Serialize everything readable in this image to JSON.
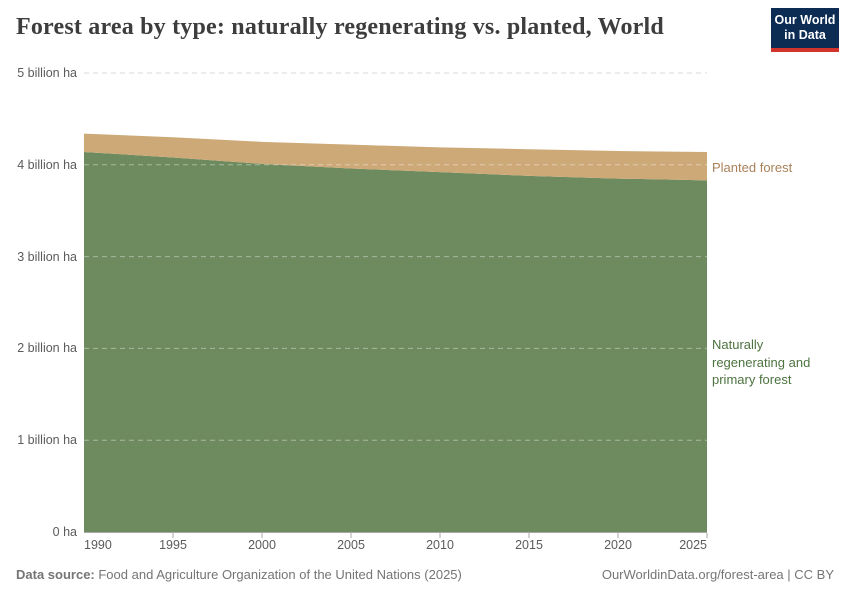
{
  "header": {
    "title": "Forest area by type: naturally regenerating vs. planted, World",
    "logo": {
      "line1": "Our World",
      "line2": "in Data"
    }
  },
  "chart_data": {
    "type": "area",
    "stacked": true,
    "title": "Forest area by type: naturally regenerating vs. planted, World",
    "x": [
      1990,
      1995,
      2000,
      2005,
      2010,
      2015,
      2020,
      2025
    ],
    "xticks": [
      "1990",
      "1995",
      "2000",
      "2005",
      "2010",
      "2015",
      "2020",
      "2025"
    ],
    "ylim": [
      0,
      5
    ],
    "y_unit": "billion ha",
    "yticks": [
      {
        "value": 0,
        "label": "0 ha"
      },
      {
        "value": 1,
        "label": "1 billion ha"
      },
      {
        "value": 2,
        "label": "2 billion ha"
      },
      {
        "value": 3,
        "label": "3 billion ha"
      },
      {
        "value": 4,
        "label": "4 billion ha"
      },
      {
        "value": 5,
        "label": "5 billion ha"
      }
    ],
    "grid": "horizontal-dashed",
    "legend_position": "right-edge-labels",
    "series": [
      {
        "name": "Naturally regenerating and primary forest",
        "label_lines": [
          "Naturally",
          "regenerating and",
          "primary forest"
        ],
        "color": "#6e8a5f",
        "label_color": "#4d7340",
        "values": [
          4.14,
          4.08,
          4.01,
          3.96,
          3.92,
          3.88,
          3.85,
          3.83
        ]
      },
      {
        "name": "Planted forest",
        "label_lines": [
          "Planted forest"
        ],
        "color": "#cda978",
        "label_color": "#aa8159",
        "values": [
          0.2,
          0.22,
          0.24,
          0.26,
          0.27,
          0.29,
          0.3,
          0.31
        ]
      }
    ]
  },
  "footer": {
    "source_label": "Data source:",
    "source_text": " Food and Agriculture Organization of the United Nations (2025)",
    "link_text": "OurWorldinData.org/forest-area | CC BY"
  },
  "colors": {
    "title_text": "#3d3d3d",
    "tick_text": "#5b5b5b",
    "footer_text": "#757575",
    "gridline": "#d9d9d9",
    "gridline_over_area": "rgba(255,255,255,0.4)",
    "axis_line": "#a8a8a8",
    "logo_bg": "#0d2c54",
    "logo_bar": "#d0342c"
  }
}
